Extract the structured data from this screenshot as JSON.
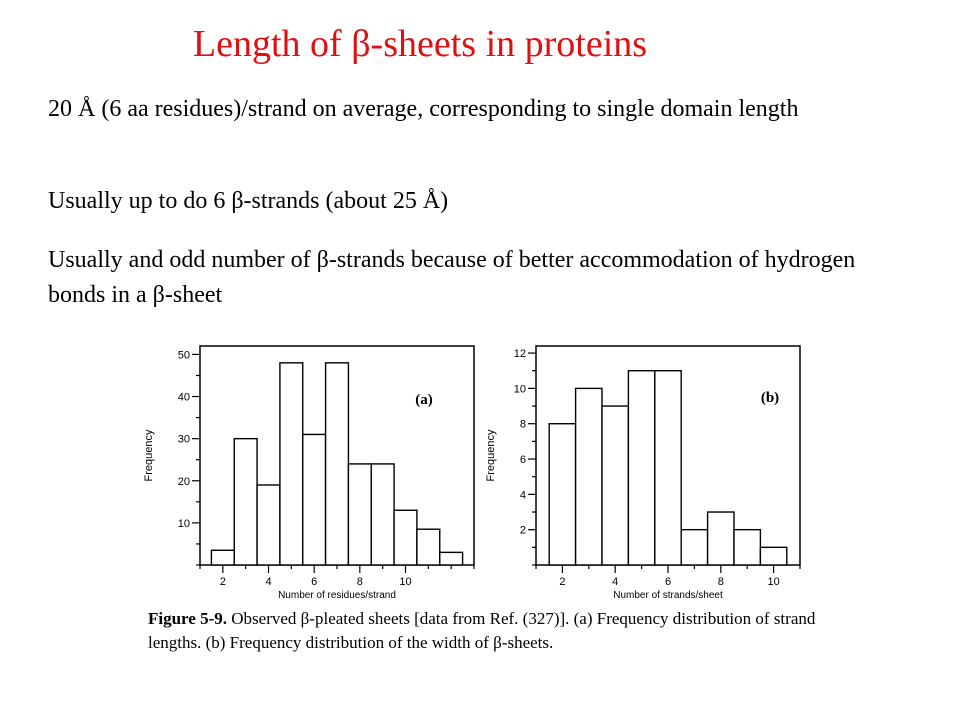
{
  "slide": {
    "title": "Length of β-sheets in proteins",
    "paragraphs": [
      "20 Å (6 aa residues)/strand on average, corresponding to single domain length",
      "Usually up to  do 6 β-strands (about 25 Å)",
      "Usually and odd number of β-strands because of better accommodation of hydrogen bonds in a β-sheet"
    ],
    "caption": {
      "label": "Figure 5-9.",
      "text": "Observed β-pleated sheets [data from Ref. (327)]. (a) Frequency distribution of strand lengths. (b) Frequency distribution of the width of β-sheets."
    }
  },
  "chart_data": [
    {
      "type": "bar",
      "panel_label": "(a)",
      "xlabel": "Number of residues/strand",
      "ylabel": "Frequency",
      "xlim": [
        1,
        13
      ],
      "ylim": [
        0,
        52
      ],
      "xticks": [
        2,
        4,
        6,
        8,
        10
      ],
      "yticks": [
        10,
        20,
        30,
        40,
        50
      ],
      "x": [
        2,
        3,
        4,
        5,
        6,
        7,
        8,
        9,
        10,
        11,
        12
      ],
      "values": [
        3.5,
        30,
        19,
        48,
        31,
        48,
        24,
        24,
        13,
        8.5,
        3
      ]
    },
    {
      "type": "bar",
      "panel_label": "(b)",
      "xlabel": "Number of strands/sheet",
      "ylabel": "Frequency",
      "xlim": [
        1,
        11
      ],
      "ylim": [
        0,
        12.4
      ],
      "xticks": [
        2,
        4,
        6,
        8,
        10
      ],
      "yticks": [
        2,
        4,
        6,
        8,
        10,
        12
      ],
      "x": [
        2,
        3,
        4,
        5,
        6,
        7,
        8,
        9,
        10
      ],
      "values": [
        8,
        10,
        9,
        11,
        11,
        2,
        3,
        2,
        1
      ]
    }
  ]
}
